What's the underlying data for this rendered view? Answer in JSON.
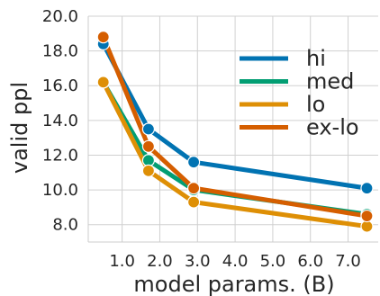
{
  "chart_data": {
    "type": "line",
    "xlabel": "model params. (B)",
    "ylabel": "valid ppl",
    "xlim": [
      0.1,
      7.8
    ],
    "ylim": [
      7.0,
      20.0
    ],
    "x_ticks": [
      1.0,
      2.0,
      3.0,
      4.0,
      5.0,
      6.0,
      7.0
    ],
    "x_tick_labels": [
      "1.0",
      "2.0",
      "3.0",
      "4.0",
      "5.0",
      "6.0",
      "7.0"
    ],
    "y_ticks": [
      8.0,
      10.0,
      12.0,
      14.0,
      16.0,
      18.0,
      20.0
    ],
    "y_tick_labels": [
      "8.0",
      "10.0",
      "12.0",
      "14.0",
      "16.0",
      "18.0",
      "20.0"
    ],
    "grid": true,
    "legend_position": "top-right",
    "x": [
      0.5,
      1.7,
      2.9,
      7.5
    ],
    "series": [
      {
        "name": "hi",
        "color": "#0173b2",
        "values": [
          18.4,
          13.5,
          11.6,
          10.1
        ]
      },
      {
        "name": "med",
        "color": "#029e73",
        "values": [
          16.2,
          11.7,
          10.0,
          8.6
        ]
      },
      {
        "name": "lo",
        "color": "#de8f05",
        "values": [
          16.2,
          11.1,
          9.3,
          7.9
        ]
      },
      {
        "name": "ex-lo",
        "color": "#d55e00",
        "values": [
          18.8,
          12.5,
          10.1,
          8.5
        ]
      }
    ]
  }
}
